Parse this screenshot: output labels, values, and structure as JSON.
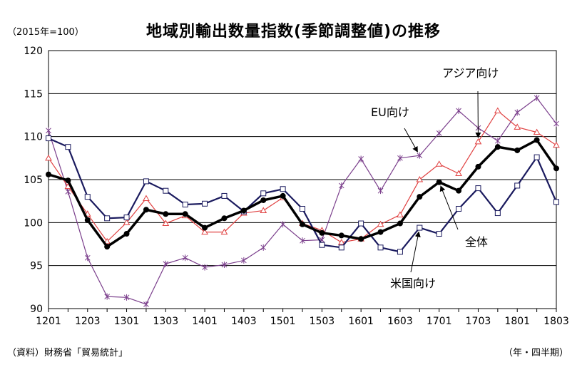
{
  "chart_data": {
    "type": "line",
    "title": "地域別輸出数量指数(季節調整値)の推移",
    "unit_label": "（2015年=100）",
    "source_note": "（資料）財務省「貿易統計」",
    "x_axis_note": "（年・四半期）",
    "ylim": [
      90,
      120
    ],
    "y_ticks": [
      90,
      95,
      100,
      105,
      110,
      115,
      120
    ],
    "grid": true,
    "x": [
      "1201",
      "1202",
      "1203",
      "1204",
      "1301",
      "1302",
      "1303",
      "1304",
      "1401",
      "1402",
      "1403",
      "1404",
      "1501",
      "1502",
      "1503",
      "1504",
      "1601",
      "1602",
      "1603",
      "1604",
      "1701",
      "1702",
      "1703",
      "1704",
      "1801",
      "1802",
      "1803"
    ],
    "x_tick_labels": [
      "1201",
      "1203",
      "1301",
      "1303",
      "1401",
      "1403",
      "1501",
      "1503",
      "1601",
      "1603",
      "1701",
      "1703",
      "1801",
      "1803"
    ],
    "series": [
      {
        "name": "全体",
        "color": "#000000",
        "marker": "filled-circle",
        "values": [
          105.6,
          104.9,
          100.3,
          97.2,
          98.7,
          101.5,
          101.0,
          101.0,
          99.4,
          100.5,
          101.4,
          102.6,
          103.1,
          99.8,
          98.8,
          98.5,
          98.1,
          98.9,
          99.9,
          103.0,
          104.7,
          103.7,
          106.5,
          108.8,
          108.4,
          109.6,
          106.3
        ]
      },
      {
        "name": "米国向け",
        "color": "#1a1a5e",
        "marker": "open-square",
        "values": [
          109.8,
          108.8,
          103.0,
          100.5,
          100.6,
          104.8,
          103.7,
          102.1,
          102.2,
          103.1,
          101.3,
          103.4,
          103.9,
          101.6,
          97.4,
          97.1,
          99.9,
          97.1,
          96.6,
          99.4,
          98.7,
          101.6,
          104.0,
          101.1,
          104.3,
          107.6,
          102.4
        ]
      },
      {
        "name": "EU向け",
        "color": "#7b3f8c",
        "marker": "asterisk",
        "values": [
          110.7,
          103.6,
          95.9,
          91.4,
          91.3,
          90.5,
          95.2,
          95.9,
          94.8,
          95.1,
          95.6,
          97.1,
          99.8,
          97.9,
          98.0,
          104.3,
          107.4,
          103.7,
          107.5,
          107.8,
          110.4,
          113.0,
          111.0,
          109.5,
          112.8,
          114.5,
          111.5
        ]
      },
      {
        "name": "アジア向け",
        "color": "#e04040",
        "marker": "open-triangle",
        "values": [
          107.5,
          104.2,
          101.0,
          97.8,
          100.0,
          102.8,
          99.9,
          100.8,
          98.9,
          98.9,
          101.1,
          101.4,
          102.9,
          99.9,
          99.1,
          97.7,
          98.1,
          99.8,
          100.9,
          105.0,
          106.8,
          105.7,
          109.4,
          113.0,
          111.1,
          110.5,
          109.0
        ]
      }
    ],
    "annotations": [
      {
        "text": "アジア向け",
        "series": "アジア向け"
      },
      {
        "text": "EU向け",
        "series": "EU向け"
      },
      {
        "text": "全体",
        "series": "全体"
      },
      {
        "text": "米国向け",
        "series": "米国向け"
      }
    ]
  }
}
